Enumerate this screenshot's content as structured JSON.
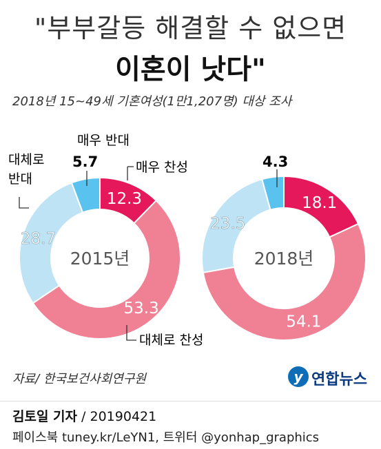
{
  "header": {
    "title_line1": "\"부부갈등 해결할 수 없으면",
    "title_line2": "이혼이 낫다\"",
    "subtitle": "2018년 15~49세 기혼여성(1만1,207명) 대상 조사"
  },
  "chart_data": [
    {
      "type": "pie",
      "year": "2015년",
      "categories": [
        "매우 찬성",
        "대체로 찬성",
        "대체로 반대",
        "매우 반대"
      ],
      "values": [
        12.3,
        53.3,
        28.7,
        5.7
      ],
      "colors": [
        "#e4185a",
        "#f08195",
        "#bde3f5",
        "#5ac2ee"
      ],
      "donut": true
    },
    {
      "type": "pie",
      "year": "2018년",
      "categories": [
        "매우 찬성",
        "대체로 찬성",
        "대체로 반대",
        "매우 반대"
      ],
      "values": [
        18.1,
        54.1,
        23.5,
        4.3
      ],
      "colors": [
        "#e4185a",
        "#f08195",
        "#bde3f5",
        "#5ac2ee"
      ],
      "donut": true
    }
  ],
  "legend": {
    "strong_agree": "매우 찬성",
    "agree": "대체로 찬성",
    "disagree_line1": "대체로",
    "disagree_line2": "반대",
    "strong_disagree": "매우 반대"
  },
  "source": "자료/ 한국보건사회연구원",
  "logo": {
    "text": "연합뉴스"
  },
  "footer": {
    "reporter": "김토일 기자",
    "date": "20190421",
    "social": "페이스북 tuney.kr/LeYN1, 트위터 @yonhap_graphics"
  }
}
